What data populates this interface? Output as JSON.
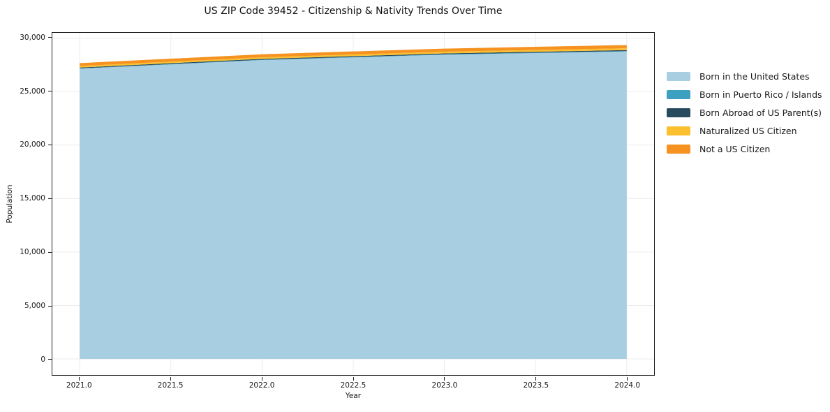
{
  "title": "US ZIP Code 39452 - Citizenship & Nativity Trends Over Time",
  "chart_data": {
    "type": "area",
    "stacked": true,
    "title": "US ZIP Code 39452 - Citizenship & Nativity Trends Over Time",
    "xlabel": "Year",
    "ylabel": "Population",
    "x": [
      2021,
      2022,
      2023,
      2024
    ],
    "series": [
      {
        "name": "Born in the United States",
        "color": "#A8CEE2",
        "values": [
          27150,
          27950,
          28450,
          28750
        ]
      },
      {
        "name": "Born in Puerto Rico / Islands",
        "color": "#3EA0C1",
        "values": [
          30,
          35,
          40,
          45
        ]
      },
      {
        "name": "Born Abroad of US Parent(s)",
        "color": "#284A5E",
        "values": [
          75,
          80,
          85,
          90
        ]
      },
      {
        "name": "Naturalized US Citizen",
        "color": "#FCBF2E",
        "values": [
          140,
          150,
          160,
          170
        ]
      },
      {
        "name": "Not a US Citizen",
        "color": "#F59220",
        "values": [
          270,
          280,
          290,
          300
        ]
      }
    ],
    "totals": [
      27665,
      28495,
      29025,
      29355
    ],
    "x_ticks": [
      2021.0,
      2021.5,
      2022.0,
      2022.5,
      2023.0,
      2023.5,
      2024.0
    ],
    "x_tick_labels": [
      "2021.0",
      "2021.5",
      "2022.0",
      "2022.5",
      "2023.0",
      "2023.5",
      "2024.0"
    ],
    "y_ticks": [
      0,
      5000,
      10000,
      15000,
      20000,
      25000,
      30000
    ],
    "y_tick_labels": [
      "0",
      "5,000",
      "10,000",
      "15,000",
      "20,000",
      "25,000",
      "30,000"
    ],
    "xlim": [
      2020.85,
      2024.15
    ],
    "ylim": [
      -1500,
      30500
    ],
    "grid": true,
    "grid_color": "#ececec",
    "background_color": "#ffffff",
    "legend_position": "right"
  }
}
